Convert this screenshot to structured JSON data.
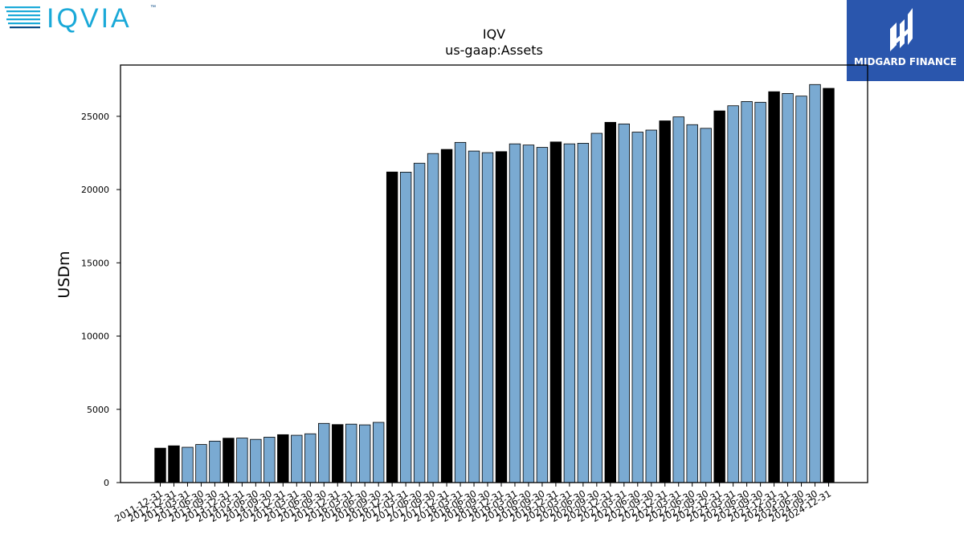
{
  "logos": {
    "left_text": "IQVIA",
    "left_tm": "™",
    "right_text": "MIDGARD FINANCE"
  },
  "colors": {
    "annual_bar": "#000000",
    "quarter_bar": "#7aaad2",
    "iqvia_teal": "#1aa9d8",
    "iqvia_navy": "#0b4c86",
    "midgard_bg": "#2a56ad"
  },
  "chart_data": {
    "type": "bar",
    "title": "IQV",
    "subtitle": "us-gaap:Assets",
    "xlabel": "",
    "ylabel": "USDm",
    "ylim": [
      0,
      28500
    ],
    "yticks": [
      0,
      5000,
      10000,
      15000,
      20000,
      25000
    ],
    "categories": [
      "2011-12-31",
      "2012-12-31",
      "2013-03-31",
      "2013-06-30",
      "2013-09-30",
      "2013-12-31",
      "2014-03-31",
      "2014-06-30",
      "2014-09-30",
      "2014-12-31",
      "2015-03-31",
      "2015-06-30",
      "2015-09-30",
      "2015-12-31",
      "2016-03-31",
      "2016-06-30",
      "2016-09-30",
      "2016-12-31",
      "2017-03-31",
      "2017-06-30",
      "2017-09-30",
      "2017-12-31",
      "2018-03-31",
      "2018-06-30",
      "2018-09-30",
      "2018-12-31",
      "2019-03-31",
      "2019-06-30",
      "2019-09-30",
      "2019-12-31",
      "2020-03-31",
      "2020-06-30",
      "2020-09-30",
      "2020-12-31",
      "2021-03-31",
      "2021-06-30",
      "2021-09-30",
      "2021-12-31",
      "2022-03-31",
      "2022-06-30",
      "2022-09-30",
      "2022-12-31",
      "2023-03-31",
      "2023-06-30",
      "2023-09-30",
      "2023-12-31",
      "2024-03-31",
      "2024-06-30",
      "2024-09-30",
      "2024-12-31"
    ],
    "values": [
      2350,
      2510,
      2410,
      2600,
      2830,
      3030,
      3040,
      2950,
      3100,
      3270,
      3230,
      3330,
      4040,
      3960,
      3990,
      3940,
      4110,
      21200,
      21190,
      21800,
      22460,
      22740,
      23220,
      22630,
      22520,
      22590,
      23120,
      23040,
      22880,
      23250,
      23120,
      23160,
      23840,
      24590,
      24480,
      23920,
      24060,
      24690,
      24960,
      24430,
      24180,
      25370,
      25720,
      26010,
      25960,
      26680,
      26560,
      26380,
      27170,
      26910
    ],
    "annual": [
      true,
      true,
      false,
      false,
      false,
      true,
      false,
      false,
      false,
      true,
      false,
      false,
      false,
      true,
      false,
      false,
      false,
      true,
      false,
      false,
      false,
      true,
      false,
      false,
      false,
      true,
      false,
      false,
      false,
      true,
      false,
      false,
      false,
      true,
      false,
      false,
      false,
      true,
      false,
      false,
      false,
      true,
      false,
      false,
      false,
      true,
      false,
      false,
      false,
      true
    ],
    "grid": false,
    "legend": "none"
  }
}
